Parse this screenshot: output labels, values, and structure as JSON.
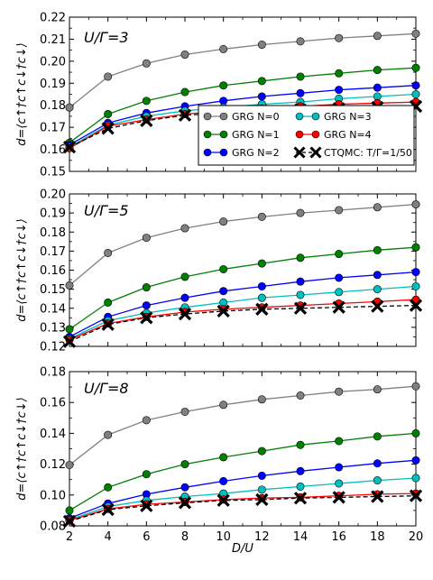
{
  "figure": {
    "xlabel": "D/U",
    "legend": {
      "placement": "inside panel 1, lower-right",
      "entries": [
        {
          "label": "GRG N=0",
          "color": "#808080",
          "marker": "circle"
        },
        {
          "label": "GRG N=1",
          "color": "#008000",
          "marker": "circle"
        },
        {
          "label": "GRG N=2",
          "color": "#0000ff",
          "marker": "circle"
        },
        {
          "label": "GRG N=3",
          "color": "#00bfbf",
          "marker": "circle"
        },
        {
          "label": "GRG N=4",
          "color": "#ff0000",
          "marker": "circle"
        },
        {
          "label": "CTQMC: T/Γ=1/50",
          "color": "#000000",
          "marker": "x-dashed"
        }
      ]
    }
  },
  "chart_data": [
    {
      "type": "line",
      "title": "U/Γ=3",
      "ylabel": "d=⟨c↑†c↑c↓†c↓⟩",
      "xlabel": "D/U",
      "xlim": [
        2,
        20
      ],
      "ylim": [
        0.15,
        0.22
      ],
      "xticks": [
        2,
        4,
        6,
        8,
        10,
        12,
        14,
        16,
        18,
        20
      ],
      "yticks": [
        0.15,
        0.16,
        0.17,
        0.18,
        0.19,
        0.2,
        0.21,
        0.22
      ],
      "ytick_labels": [
        "0.15",
        "0.16",
        "0.17",
        "0.18",
        "0.19",
        "0.20",
        "0.21",
        "0.22"
      ],
      "grid": false,
      "x": [
        2,
        4,
        6,
        8,
        10,
        12,
        14,
        16,
        18,
        20
      ],
      "series": [
        {
          "name": "GRG N=0",
          "color": "#808080",
          "values": [
            0.179,
            0.193,
            0.199,
            0.203,
            0.2055,
            0.2075,
            0.209,
            0.2105,
            0.2115,
            0.2125
          ]
        },
        {
          "name": "GRG N=1",
          "color": "#008000",
          "values": [
            0.163,
            0.176,
            0.182,
            0.186,
            0.189,
            0.191,
            0.193,
            0.1945,
            0.196,
            0.197
          ]
        },
        {
          "name": "GRG N=2",
          "color": "#0000ff",
          "values": [
            0.162,
            0.172,
            0.1765,
            0.1795,
            0.182,
            0.184,
            0.1855,
            0.187,
            0.188,
            0.189
          ]
        },
        {
          "name": "GRG N=3",
          "color": "#00bfbf",
          "values": [
            0.161,
            0.171,
            0.175,
            0.1775,
            0.179,
            0.1805,
            0.1815,
            0.183,
            0.184,
            0.185
          ]
        },
        {
          "name": "GRG N=4",
          "color": "#ff0000",
          "values": [
            0.1605,
            0.1705,
            0.1735,
            0.176,
            0.1775,
            0.1785,
            0.1795,
            0.1805,
            0.181,
            0.1815
          ]
        },
        {
          "name": "CTQMC: T/Γ=1/50",
          "color": "#000000",
          "values": [
            0.161,
            0.1695,
            0.173,
            0.1755,
            0.1765,
            0.1775,
            0.178,
            0.1785,
            0.179,
            0.1795
          ]
        }
      ]
    },
    {
      "type": "line",
      "title": "U/Γ=5",
      "ylabel": "d=⟨c↑†c↑c↓†c↓⟩",
      "xlabel": "D/U",
      "xlim": [
        2,
        20
      ],
      "ylim": [
        0.12,
        0.2
      ],
      "xticks": [
        2,
        4,
        6,
        8,
        10,
        12,
        14,
        16,
        18,
        20
      ],
      "yticks": [
        0.12,
        0.13,
        0.14,
        0.15,
        0.16,
        0.17,
        0.18,
        0.19,
        0.2
      ],
      "ytick_labels": [
        "0.12",
        "0.13",
        "0.14",
        "0.15",
        "0.16",
        "0.17",
        "0.18",
        "0.19",
        "0.20"
      ],
      "grid": false,
      "x": [
        2,
        4,
        6,
        8,
        10,
        12,
        14,
        16,
        18,
        20
      ],
      "series": [
        {
          "name": "GRG N=0",
          "color": "#808080",
          "values": [
            0.152,
            0.169,
            0.177,
            0.182,
            0.1855,
            0.188,
            0.19,
            0.1915,
            0.193,
            0.1945
          ]
        },
        {
          "name": "GRG N=1",
          "color": "#008000",
          "values": [
            0.129,
            0.143,
            0.151,
            0.1565,
            0.1605,
            0.1635,
            0.1665,
            0.1685,
            0.1705,
            0.172
          ]
        },
        {
          "name": "GRG N=2",
          "color": "#0000ff",
          "values": [
            0.125,
            0.1355,
            0.1415,
            0.1455,
            0.149,
            0.1515,
            0.154,
            0.156,
            0.1575,
            0.159
          ]
        },
        {
          "name": "GRG N=3",
          "color": "#00bfbf",
          "values": [
            0.124,
            0.1335,
            0.1375,
            0.1405,
            0.143,
            0.1455,
            0.147,
            0.1485,
            0.15,
            0.1515
          ]
        },
        {
          "name": "GRG N=4",
          "color": "#ff0000",
          "values": [
            0.1235,
            0.132,
            0.1355,
            0.138,
            0.1395,
            0.1405,
            0.1415,
            0.1425,
            0.1435,
            0.1445
          ]
        },
        {
          "name": "CTQMC: T/Γ=1/50",
          "color": "#000000",
          "values": [
            0.1225,
            0.1315,
            0.135,
            0.137,
            0.1385,
            0.1395,
            0.14,
            0.1405,
            0.141,
            0.1415
          ]
        }
      ]
    },
    {
      "type": "line",
      "title": "U/Γ=8",
      "ylabel": "d=⟨c↑†c↑c↓†c↓⟩",
      "xlabel": "D/U",
      "xlim": [
        2,
        20
      ],
      "ylim": [
        0.08,
        0.18
      ],
      "xticks": [
        2,
        4,
        6,
        8,
        10,
        12,
        14,
        16,
        18,
        20
      ],
      "yticks": [
        0.08,
        0.1,
        0.12,
        0.14,
        0.16,
        0.18
      ],
      "ytick_labels": [
        "0.08",
        "0.10",
        "0.12",
        "0.14",
        "0.16",
        "0.18"
      ],
      "xtick_labels": [
        "2",
        "4",
        "6",
        "8",
        "10",
        "12",
        "14",
        "16",
        "18",
        "20"
      ],
      "grid": false,
      "x": [
        2,
        4,
        6,
        8,
        10,
        12,
        14,
        16,
        18,
        20
      ],
      "series": [
        {
          "name": "GRG N=0",
          "color": "#808080",
          "values": [
            0.1195,
            0.139,
            0.1485,
            0.154,
            0.1585,
            0.162,
            0.1645,
            0.167,
            0.1685,
            0.1705
          ]
        },
        {
          "name": "GRG N=1",
          "color": "#008000",
          "values": [
            0.09,
            0.105,
            0.1135,
            0.12,
            0.1245,
            0.1285,
            0.1325,
            0.135,
            0.138,
            0.14
          ]
        },
        {
          "name": "GRG N=2",
          "color": "#0000ff",
          "values": [
            0.085,
            0.0945,
            0.1005,
            0.105,
            0.109,
            0.1125,
            0.1155,
            0.118,
            0.1205,
            0.1225
          ]
        },
        {
          "name": "GRG N=3",
          "color": "#00bfbf",
          "values": [
            0.084,
            0.0925,
            0.0965,
            0.099,
            0.101,
            0.1035,
            0.1055,
            0.1075,
            0.1095,
            0.111
          ]
        },
        {
          "name": "GRG N=4",
          "color": "#ff0000",
          "values": [
            0.0835,
            0.091,
            0.094,
            0.0955,
            0.097,
            0.098,
            0.0985,
            0.0995,
            0.1005,
            0.101
          ]
        },
        {
          "name": "CTQMC: T/Γ=1/50",
          "color": "#000000",
          "values": [
            0.083,
            0.0905,
            0.093,
            0.095,
            0.0965,
            0.097,
            0.098,
            0.0985,
            0.099,
            0.0995
          ]
        }
      ]
    }
  ]
}
